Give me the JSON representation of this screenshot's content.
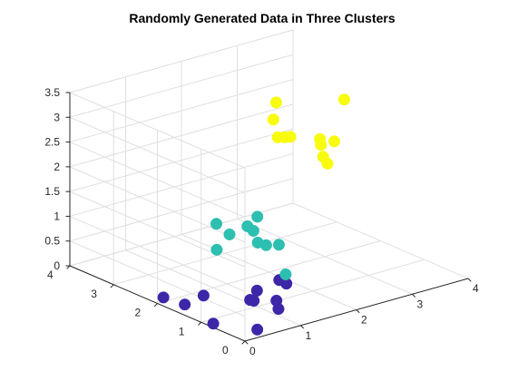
{
  "chart_data": {
    "type": "scatter",
    "title": "Randomly Generated Data in Three Clusters",
    "xlabel": "",
    "ylabel": "",
    "zlabel": "",
    "xlim": [
      0,
      4
    ],
    "ylim": [
      0,
      4
    ],
    "zlim": [
      0,
      3.5
    ],
    "x_ticks": [
      "0",
      "1",
      "2",
      "3",
      "4"
    ],
    "y_ticks": [
      "0",
      "1",
      "2",
      "3",
      "4"
    ],
    "z_ticks": [
      "0",
      "0.5",
      "1",
      "1.5",
      "2",
      "2.5",
      "3",
      "3.5"
    ],
    "grid": true,
    "projection": "3d",
    "series": [
      {
        "color": "#3E26A8",
        "points": [
          {
            "x": 0.3,
            "y": 0.1,
            "z": 0.1
          },
          {
            "x": 0.06,
            "y": 0.8,
            "z": 0.03
          },
          {
            "x": 0.8,
            "y": 0.3,
            "z": 0.45
          },
          {
            "x": 0.53,
            "y": 0.4,
            "z": 0.7
          },
          {
            "x": 0.55,
            "y": 0.5,
            "z": 0.45
          },
          {
            "x": 0.85,
            "y": 0.3,
            "z": 0.85
          },
          {
            "x": 0.9,
            "y": 0.2,
            "z": 0.8
          },
          {
            "x": 0.02,
            "y": 1.4,
            "z": 0.2
          },
          {
            "x": 0.2,
            "y": 1.2,
            "z": 0.4
          },
          {
            "x": 0.72,
            "y": 0.8,
            "z": 0.3
          },
          {
            "x": 0.03,
            "y": 1.9,
            "z": 0.15
          },
          {
            "x": 1.15,
            "y": 0.7,
            "z": 0.02
          }
        ]
      },
      {
        "color": "#2DBFB0",
        "points": [
          {
            "x": 1.3,
            "y": 1.6,
            "z": 1.3
          },
          {
            "x": 1.25,
            "y": 1.4,
            "z": 1.3
          },
          {
            "x": 1.4,
            "y": 1.5,
            "z": 1.5
          },
          {
            "x": 1.4,
            "y": 1.3,
            "z": 1.0
          },
          {
            "x": 1.25,
            "y": 1.3,
            "z": 1.1
          },
          {
            "x": 0.75,
            "y": 1.6,
            "z": 1.0
          },
          {
            "x": 1.55,
            "y": 1.2,
            "z": 1.0
          },
          {
            "x": 0.9,
            "y": 1.5,
            "z": 1.3
          },
          {
            "x": 0.9,
            "y": 1.8,
            "z": 1.4
          },
          {
            "x": 1.75,
            "y": 1.3,
            "z": 0.3
          }
        ]
      },
      {
        "color": "#F9FB0E",
        "points": [
          {
            "x": 2.8,
            "y": 1.3,
            "z": 3.5
          },
          {
            "x": 2.05,
            "y": 1.9,
            "z": 3.45
          },
          {
            "x": 2.0,
            "y": 1.9,
            "z": 3.12
          },
          {
            "x": 2.2,
            "y": 1.9,
            "z": 2.7
          },
          {
            "x": 2.15,
            "y": 1.7,
            "z": 2.8
          },
          {
            "x": 2.0,
            "y": 1.8,
            "z": 2.8
          },
          {
            "x": 2.6,
            "y": 1.6,
            "z": 2.65
          },
          {
            "x": 2.5,
            "y": 1.45,
            "z": 2.62
          },
          {
            "x": 2.5,
            "y": 1.4,
            "z": 2.4
          },
          {
            "x": 2.5,
            "y": 1.3,
            "z": 2.3
          },
          {
            "x": 2.7,
            "y": 1.4,
            "z": 2.65
          }
        ]
      }
    ]
  }
}
